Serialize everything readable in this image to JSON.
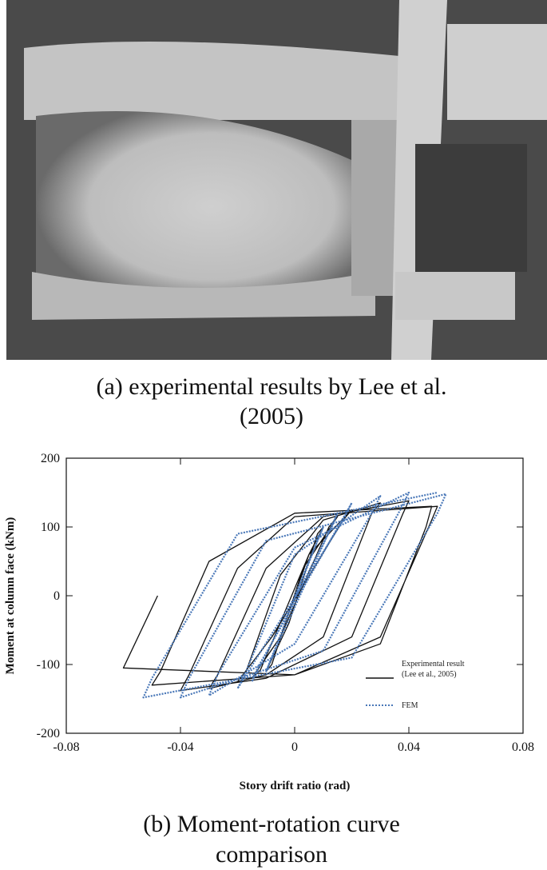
{
  "figure": {
    "caption_a": [
      "(a) experimental results by Lee et al.",
      "(2005)"
    ],
    "caption_b": [
      "(b) Moment-rotation curve",
      "comparison"
    ]
  },
  "chart_data": {
    "type": "line",
    "x_label": "Story drift ratio (rad)",
    "y_label": "Moment at column face (kNm)",
    "xlim": [
      -0.08,
      0.08
    ],
    "xticks": [
      -0.08,
      -0.04,
      0,
      0.04,
      0.08
    ],
    "ylim": [
      -200,
      200
    ],
    "yticks": [
      -200,
      -100,
      0,
      100,
      200
    ],
    "legend_position": "lower right",
    "series": [
      {
        "name": "Experimental result\n(Lee et al., 2005)",
        "color": "#111111",
        "style": "solid",
        "x": [
          0,
          0.005,
          0.01,
          0.008,
          -0.002,
          -0.01,
          -0.008,
          0.003,
          0.015,
          0.012,
          -0.005,
          -0.015,
          -0.012,
          0.005,
          0.02,
          0.017,
          -0.008,
          -0.02,
          -0.017,
          -0.005,
          0.01,
          0.03,
          0.027,
          0.01,
          -0.01,
          -0.03,
          -0.027,
          -0.01,
          0.01,
          0.04,
          0.038,
          0.02,
          -0.01,
          -0.04,
          -0.037,
          -0.02,
          0,
          0.05,
          0.048,
          0.03,
          0,
          -0.05,
          -0.047,
          -0.03,
          0,
          0.048,
          0.046,
          0.03,
          0,
          -0.06,
          -0.048
        ],
        "values": [
          0,
          60,
          100,
          90,
          -40,
          -110,
          -100,
          40,
          115,
          100,
          -60,
          -120,
          -108,
          60,
          125,
          110,
          -60,
          -125,
          -110,
          30,
          110,
          135,
          120,
          -60,
          -115,
          -135,
          -115,
          40,
          115,
          138,
          120,
          -60,
          -120,
          -138,
          -115,
          40,
          115,
          130,
          110,
          -60,
          -115,
          -130,
          -110,
          50,
          120,
          130,
          100,
          -70,
          -115,
          -105,
          0
        ]
      },
      {
        "name": "FEM",
        "color": "#4a78b8",
        "style": "dotted",
        "x": [
          0,
          0.01,
          0.008,
          -0.01,
          -0.008,
          0.015,
          0.013,
          -0.015,
          -0.013,
          0.02,
          0.017,
          -0.02,
          -0.017,
          0,
          0.03,
          0.027,
          0,
          -0.03,
          -0.027,
          0,
          0.04,
          0.037,
          0.01,
          -0.04,
          -0.037,
          -0.01,
          0.053,
          0.05,
          0.02,
          -0.053,
          -0.05,
          -0.02,
          0.05
        ],
        "values": [
          0,
          100,
          80,
          -110,
          -90,
          120,
          100,
          -125,
          -105,
          135,
          110,
          -135,
          -110,
          60,
          145,
          120,
          -70,
          -145,
          -115,
          70,
          150,
          125,
          -80,
          -148,
          -120,
          80,
          148,
          120,
          -90,
          -148,
          -120,
          90,
          150
        ]
      }
    ]
  }
}
